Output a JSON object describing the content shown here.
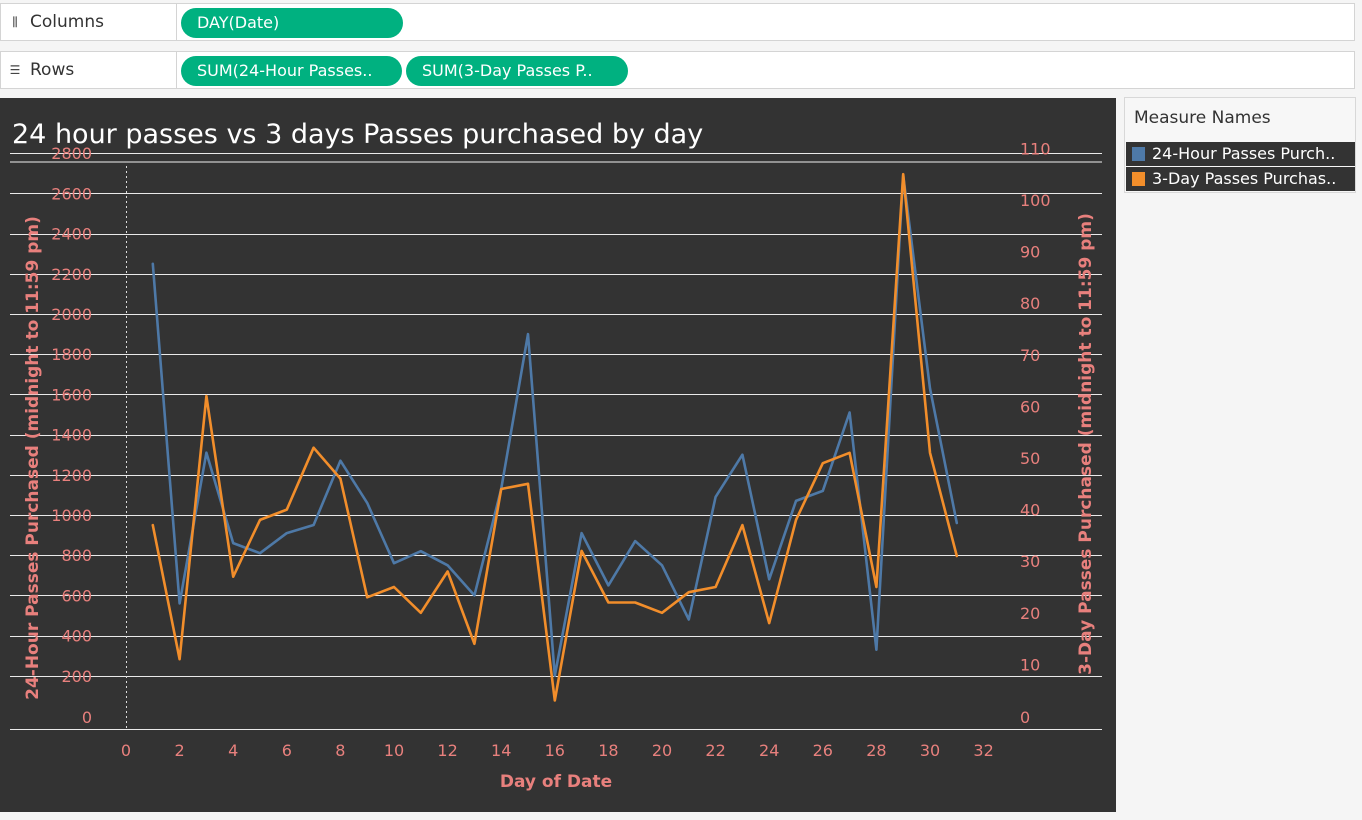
{
  "shelves": {
    "columns": {
      "label": "Columns",
      "icon": "columns-icon",
      "pills": [
        "DAY(Date)"
      ]
    },
    "rows": {
      "label": "Rows",
      "icon": "rows-icon",
      "pills": [
        "SUM(24-Hour Passes..",
        "SUM(3-Day Passes P.."
      ]
    }
  },
  "legend": {
    "title": "Measure Names",
    "items": [
      {
        "label": "24-Hour Passes Purch..",
        "color": "#4e79a7"
      },
      {
        "label": "3-Day Passes Purchas..",
        "color": "#f28e2b"
      }
    ]
  },
  "colors": {
    "accent_pill": "#00b180",
    "chart_bg": "#333333",
    "axis_text": "#e8807d",
    "series_24h": "#4e79a7",
    "series_3d": "#f28e2b"
  },
  "chart_data": {
    "type": "line",
    "title": "24 hour passes vs 3 days Passes purchased by day",
    "xlabel": "Day of Date",
    "ylabel_left": "24-Hour Passes Purchased (midnight to 11:59 pm)",
    "ylabel_right": "3-Day Passes Purchased (midnight to 11:59 pm)",
    "xlim": [
      0,
      32
    ],
    "ylim_left": [
      0,
      2800
    ],
    "ylim_right": [
      0,
      110
    ],
    "x_ticks": [
      "0",
      "2",
      "4",
      "6",
      "8",
      "10",
      "12",
      "14",
      "16",
      "18",
      "20",
      "22",
      "24",
      "26",
      "28",
      "30",
      "32"
    ],
    "y_left_ticks": [
      "2800",
      "2600",
      "2400",
      "2200",
      "2000",
      "1800",
      "1600",
      "1400",
      "1200",
      "1000",
      "800",
      "600",
      "400",
      "200",
      "0"
    ],
    "y_right_ticks": [
      "110",
      "100",
      "90",
      "80",
      "70",
      "60",
      "50",
      "40",
      "30",
      "20",
      "10",
      "0"
    ],
    "grid": true,
    "legend_position": "right",
    "x": [
      1,
      2,
      3,
      4,
      5,
      6,
      7,
      8,
      9,
      10,
      11,
      12,
      13,
      14,
      15,
      16,
      17,
      18,
      19,
      20,
      21,
      22,
      23,
      24,
      25,
      26,
      27,
      28,
      29,
      30,
      31
    ],
    "series": [
      {
        "name": "24-Hour Passes Purchased (midnight to 11:59 pm)",
        "axis": "left",
        "values": [
          2250,
          560,
          1310,
          860,
          810,
          910,
          950,
          1270,
          1060,
          760,
          820,
          750,
          600,
          1130,
          1900,
          200,
          910,
          650,
          870,
          750,
          480,
          1090,
          1300,
          680,
          1070,
          1120,
          1510,
          330,
          2690,
          1630,
          960
        ]
      },
      {
        "name": "3-Day Passes Purchased (midnight to 11:59 pm)",
        "axis": "right",
        "values": [
          37,
          11,
          62,
          27,
          38,
          40,
          52,
          46,
          23,
          25,
          20,
          28,
          14,
          44,
          45,
          3,
          32,
          22,
          22,
          20,
          24,
          25,
          37,
          18,
          38,
          49,
          51,
          25,
          105,
          51,
          31
        ]
      }
    ]
  }
}
